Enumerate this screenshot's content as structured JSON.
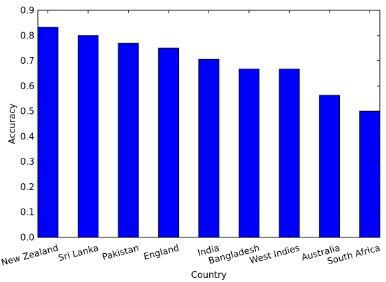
{
  "chart_data": {
    "type": "bar",
    "categories": [
      "New Zealand",
      "Sri Lanka",
      "Pakistan",
      "England",
      "India",
      "Bangladesh",
      "West Indies",
      "Australia",
      "South Africa"
    ],
    "values": [
      0.833,
      0.8,
      0.769,
      0.75,
      0.706,
      0.667,
      0.667,
      0.563,
      0.5
    ],
    "title": "",
    "xlabel": "Country",
    "ylabel": "Accuracy",
    "ylim": [
      0.0,
      0.9
    ],
    "yticks": [
      "0.0",
      "0.1",
      "0.2",
      "0.3",
      "0.4",
      "0.5",
      "0.6",
      "0.7",
      "0.8",
      "0.9"
    ],
    "grid": false,
    "bar_color": "#0000ff",
    "edge_color": "#000000"
  }
}
